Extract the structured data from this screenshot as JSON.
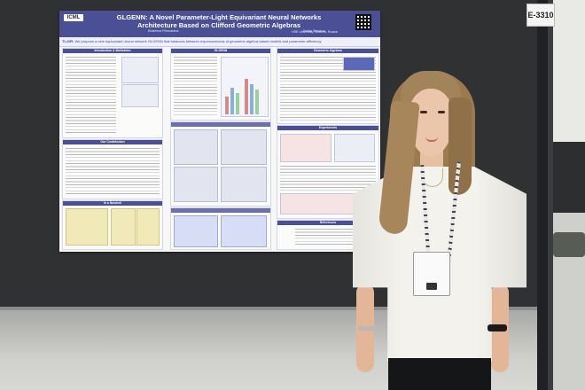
{
  "booth": {
    "number": "E-3310"
  },
  "poster": {
    "logo": "ICML",
    "title": "GLGENN: A Novel Parameter-Light Equivariant Neural Networks Architecture Based on Clifford Geometric Algebras",
    "authors": [
      {
        "name": "Ekaterina Filimoshina"
      },
      {
        "name": "Dmitry Shirokov"
      }
    ],
    "affiliation": "HSE University, Moscow, Russia",
    "tldr_label": "TL;DR:",
    "tldr_text": "We propose a new equivariant neural network GLGENN that balances between expressiveness of geometric algebra-based models and parameter-efficiency",
    "sections": {
      "intro": "Introduction & Motivation",
      "contribution": "Our Contribution",
      "nutshell": "In a Nutshell",
      "glgenn": "GLGENN",
      "geometric_algebra": "Geometric Algebras",
      "experiments": "Experiments",
      "references": "References"
    }
  },
  "colors": {
    "poster_header": "#4a4f96",
    "board": "#2f3133",
    "shirt": "#f3f2ed"
  }
}
